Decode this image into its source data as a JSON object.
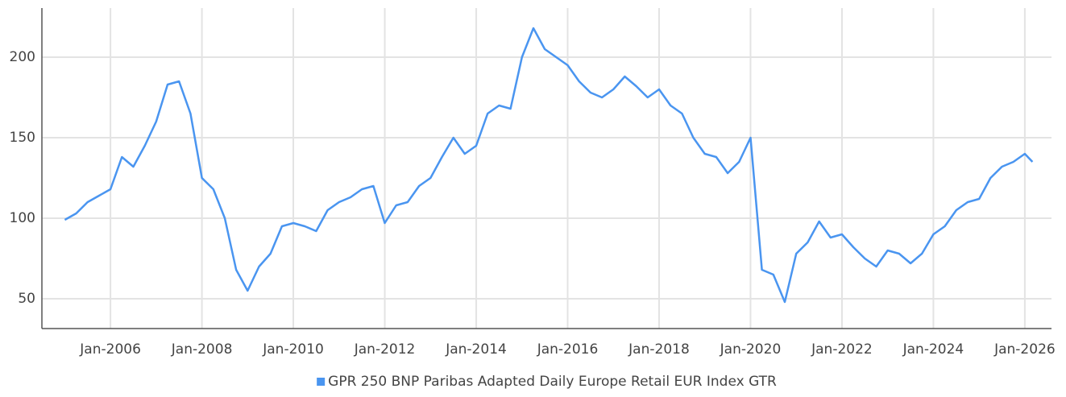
{
  "chart_data": {
    "type": "line",
    "x": [
      "Jan-2005",
      "Apr-2005",
      "Jul-2005",
      "Oct-2005",
      "Jan-2006",
      "Apr-2006",
      "Jul-2006",
      "Oct-2006",
      "Jan-2007",
      "Apr-2007",
      "Jul-2007",
      "Oct-2007",
      "Jan-2008",
      "Apr-2008",
      "Jul-2008",
      "Oct-2008",
      "Jan-2009",
      "Apr-2009",
      "Jul-2009",
      "Oct-2009",
      "Jan-2010",
      "Apr-2010",
      "Jul-2010",
      "Oct-2010",
      "Jan-2011",
      "Apr-2011",
      "Jul-2011",
      "Oct-2011",
      "Jan-2012",
      "Apr-2012",
      "Jul-2012",
      "Oct-2012",
      "Jan-2013",
      "Apr-2013",
      "Jul-2013",
      "Oct-2013",
      "Jan-2014",
      "Apr-2014",
      "Jul-2014",
      "Oct-2014",
      "Jan-2015",
      "Apr-2015",
      "Jul-2015",
      "Oct-2015",
      "Jan-2016",
      "Apr-2016",
      "Jul-2016",
      "Oct-2016",
      "Jan-2017",
      "Apr-2017",
      "Jul-2017",
      "Oct-2017",
      "Jan-2018",
      "Apr-2018",
      "Jul-2018",
      "Oct-2018",
      "Jan-2019",
      "Apr-2019",
      "Jul-2019",
      "Oct-2019",
      "Jan-2020",
      "Apr-2020",
      "Jul-2020",
      "Oct-2020",
      "Jan-2021",
      "Apr-2021",
      "Jul-2021",
      "Oct-2021",
      "Jan-2022",
      "Apr-2022",
      "Jul-2022",
      "Oct-2022",
      "Jan-2023",
      "Apr-2023",
      "Jul-2023",
      "Oct-2023",
      "Jan-2024",
      "Apr-2024",
      "Jul-2024",
      "Oct-2024",
      "Jan-2025",
      "Apr-2025",
      "Jul-2025",
      "Oct-2025",
      "Jan-2026",
      "Mar-2026"
    ],
    "series": [
      {
        "name": "GPR 250 BNP Paribas Adapted Daily Europe Retail EUR Index GTR",
        "color": "#4a95f0",
        "values": [
          99,
          103,
          110,
          114,
          118,
          138,
          132,
          145,
          160,
          183,
          185,
          165,
          125,
          118,
          100,
          68,
          55,
          70,
          78,
          95,
          97,
          95,
          92,
          105,
          110,
          113,
          118,
          120,
          97,
          108,
          110,
          120,
          125,
          138,
          150,
          140,
          145,
          165,
          170,
          168,
          200,
          218,
          205,
          200,
          195,
          185,
          178,
          175,
          180,
          188,
          182,
          175,
          180,
          170,
          165,
          150,
          140,
          138,
          128,
          135,
          150,
          68,
          65,
          48,
          78,
          85,
          98,
          88,
          90,
          82,
          75,
          70,
          80,
          78,
          72,
          78,
          90,
          95,
          105,
          110,
          112,
          125,
          132,
          135,
          140,
          135
        ]
      }
    ],
    "xlim": [
      "Jul-2004",
      "Aug-2026"
    ],
    "xticks": [
      "Jan-2006",
      "Jan-2008",
      "Jan-2010",
      "Jan-2012",
      "Jan-2014",
      "Jan-2016",
      "Jan-2018",
      "Jan-2020",
      "Jan-2022",
      "Jan-2024",
      "Jan-2026"
    ],
    "ylim": [
      31.5,
      230.5
    ],
    "yticks": [
      50,
      100,
      150,
      200
    ],
    "grid": true,
    "legend": "bottom"
  }
}
